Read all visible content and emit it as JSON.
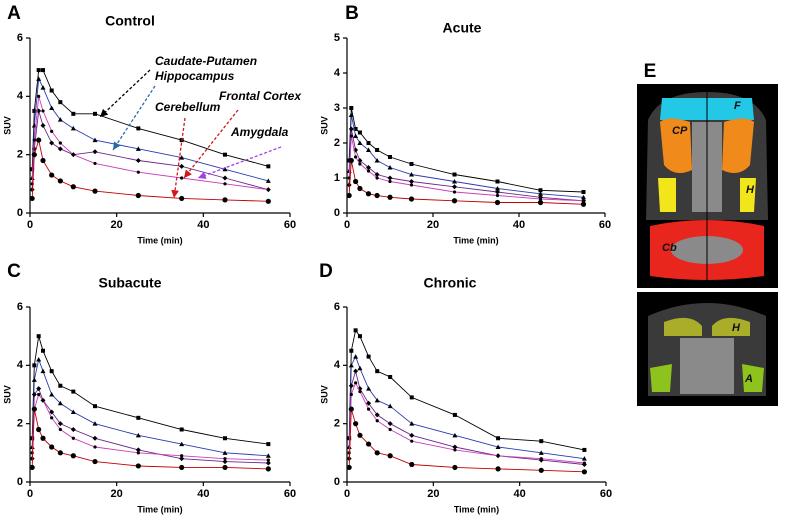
{
  "chart_data": [
    {
      "type": "line",
      "panel": "A",
      "title": "Control",
      "xlabel": "Time (min)",
      "ylabel": "SUV",
      "x": [
        0.5,
        1,
        2,
        3,
        5,
        7,
        10,
        15,
        25,
        35,
        45,
        55
      ],
      "xlim": [
        0,
        60
      ],
      "xticks": [
        0,
        20,
        40,
        60
      ],
      "ylim": [
        0,
        6
      ],
      "yticks": [
        0,
        2,
        4,
        6
      ],
      "annotations": [
        "Caudate-Putamen",
        "Hippocampus",
        "Cerebellum",
        "Frontal Cortex",
        "Amygdala"
      ],
      "series": [
        {
          "color": "#000000",
          "values": [
            1.5,
            3.5,
            4.9,
            4.9,
            4.2,
            3.8,
            3.4,
            3.4,
            2.9,
            2.5,
            2.0,
            1.6
          ]
        },
        {
          "color": "#2b3bb0",
          "values": [
            1.2,
            3.0,
            4.6,
            4.3,
            3.6,
            3.2,
            2.9,
            2.5,
            2.2,
            1.9,
            1.5,
            1.1
          ]
        },
        {
          "color": "#6a2a8a",
          "values": [
            0.8,
            2.2,
            3.5,
            3.0,
            2.4,
            2.2,
            2.0,
            2.1,
            1.8,
            1.6,
            1.2,
            0.8
          ]
        },
        {
          "color": "#cc3fb8",
          "values": [
            1.0,
            2.5,
            4.0,
            3.5,
            2.8,
            2.4,
            2.0,
            1.7,
            1.4,
            1.2,
            1.0,
            0.8
          ]
        },
        {
          "color": "#c00000",
          "values": [
            0.5,
            2.0,
            2.5,
            1.8,
            1.3,
            1.1,
            0.9,
            0.75,
            0.6,
            0.5,
            0.45,
            0.4
          ]
        }
      ]
    },
    {
      "type": "line",
      "panel": "B",
      "title": "Acute",
      "xlabel": "Time (min)",
      "ylabel": "SUV",
      "x": [
        0.5,
        1,
        2,
        3,
        5,
        7,
        10,
        15,
        25,
        35,
        45,
        55
      ],
      "xlim": [
        0,
        60
      ],
      "xticks": [
        0,
        20,
        40,
        60
      ],
      "ylim": [
        0,
        5
      ],
      "yticks": [
        0,
        1,
        2,
        3,
        4,
        5
      ],
      "series": [
        {
          "color": "#000000",
          "values": [
            1.5,
            3.0,
            2.4,
            2.3,
            2.0,
            1.8,
            1.6,
            1.4,
            1.1,
            0.9,
            0.65,
            0.6
          ]
        },
        {
          "color": "#2b3bb0",
          "values": [
            1.2,
            2.8,
            2.2,
            2.0,
            1.8,
            1.5,
            1.3,
            1.1,
            0.9,
            0.7,
            0.55,
            0.45
          ]
        },
        {
          "color": "#6a2a8a",
          "values": [
            0.8,
            2.4,
            1.8,
            1.5,
            1.3,
            1.1,
            1.0,
            0.9,
            0.75,
            0.6,
            0.45,
            0.35
          ]
        },
        {
          "color": "#cc3fb8",
          "values": [
            1.0,
            2.2,
            1.6,
            1.4,
            1.2,
            1.0,
            0.9,
            0.8,
            0.6,
            0.5,
            0.4,
            0.35
          ]
        },
        {
          "color": "#c00000",
          "values": [
            0.5,
            1.5,
            0.9,
            0.7,
            0.55,
            0.5,
            0.45,
            0.4,
            0.35,
            0.3,
            0.3,
            0.25
          ]
        }
      ]
    },
    {
      "type": "line",
      "panel": "C",
      "title": "Subacute",
      "xlabel": "Time (min)",
      "ylabel": "SUV",
      "x": [
        0.5,
        1,
        2,
        3,
        5,
        7,
        10,
        15,
        25,
        35,
        45,
        55
      ],
      "xlim": [
        0,
        60
      ],
      "xticks": [
        0,
        20,
        40,
        60
      ],
      "ylim": [
        0,
        6
      ],
      "yticks": [
        0,
        2,
        4,
        6
      ],
      "series": [
        {
          "color": "#000000",
          "values": [
            1.5,
            4.0,
            5.0,
            4.5,
            3.8,
            3.3,
            3.1,
            2.6,
            2.2,
            1.8,
            1.5,
            1.3
          ]
        },
        {
          "color": "#2b3bb0",
          "values": [
            1.2,
            3.5,
            4.2,
            3.8,
            3.0,
            2.7,
            2.4,
            2.0,
            1.6,
            1.3,
            1.0,
            0.9
          ]
        },
        {
          "color": "#6a2a8a",
          "values": [
            0.8,
            3.0,
            3.2,
            2.8,
            2.4,
            2.0,
            1.8,
            1.5,
            1.1,
            0.8,
            0.7,
            0.65
          ]
        },
        {
          "color": "#cc3fb8",
          "values": [
            1.0,
            2.5,
            3.0,
            2.8,
            2.2,
            1.8,
            1.5,
            1.2,
            1.0,
            0.9,
            0.8,
            0.75
          ]
        },
        {
          "color": "#c00000",
          "values": [
            0.5,
            2.5,
            1.8,
            1.5,
            1.2,
            1.0,
            0.9,
            0.7,
            0.55,
            0.5,
            0.5,
            0.45
          ]
        }
      ]
    },
    {
      "type": "line",
      "panel": "D",
      "title": "Chronic",
      "xlabel": "Time (min)",
      "ylabel": "SUV",
      "x": [
        0.5,
        1,
        2,
        3,
        5,
        7,
        10,
        15,
        25,
        35,
        45,
        55
      ],
      "xlim": [
        0,
        60
      ],
      "xticks": [
        0,
        20,
        40,
        60
      ],
      "ylim": [
        0,
        6
      ],
      "yticks": [
        0,
        2,
        4,
        6
      ],
      "series": [
        {
          "color": "#000000",
          "values": [
            1.5,
            4.5,
            5.2,
            5.0,
            4.3,
            3.8,
            3.6,
            2.9,
            2.3,
            1.5,
            1.4,
            1.1
          ]
        },
        {
          "color": "#2b3bb0",
          "values": [
            1.2,
            4.0,
            4.3,
            3.9,
            3.2,
            2.8,
            2.6,
            2.0,
            1.6,
            1.2,
            1.0,
            0.8
          ]
        },
        {
          "color": "#6a2a8a",
          "values": [
            0.8,
            3.3,
            3.8,
            3.2,
            2.7,
            2.3,
            2.0,
            1.6,
            1.2,
            0.9,
            0.75,
            0.6
          ]
        },
        {
          "color": "#cc3fb8",
          "values": [
            1.0,
            3.0,
            3.4,
            3.1,
            2.5,
            2.1,
            1.8,
            1.4,
            1.1,
            0.9,
            0.8,
            0.65
          ]
        },
        {
          "color": "#c00000",
          "values": [
            0.5,
            2.5,
            2.0,
            1.6,
            1.3,
            1.0,
            0.9,
            0.6,
            0.5,
            0.45,
            0.4,
            0.35
          ]
        }
      ]
    }
  ],
  "brain_panel": {
    "label": "E",
    "regions": [
      "F",
      "CP",
      "H",
      "Cb",
      "H",
      "A"
    ]
  }
}
